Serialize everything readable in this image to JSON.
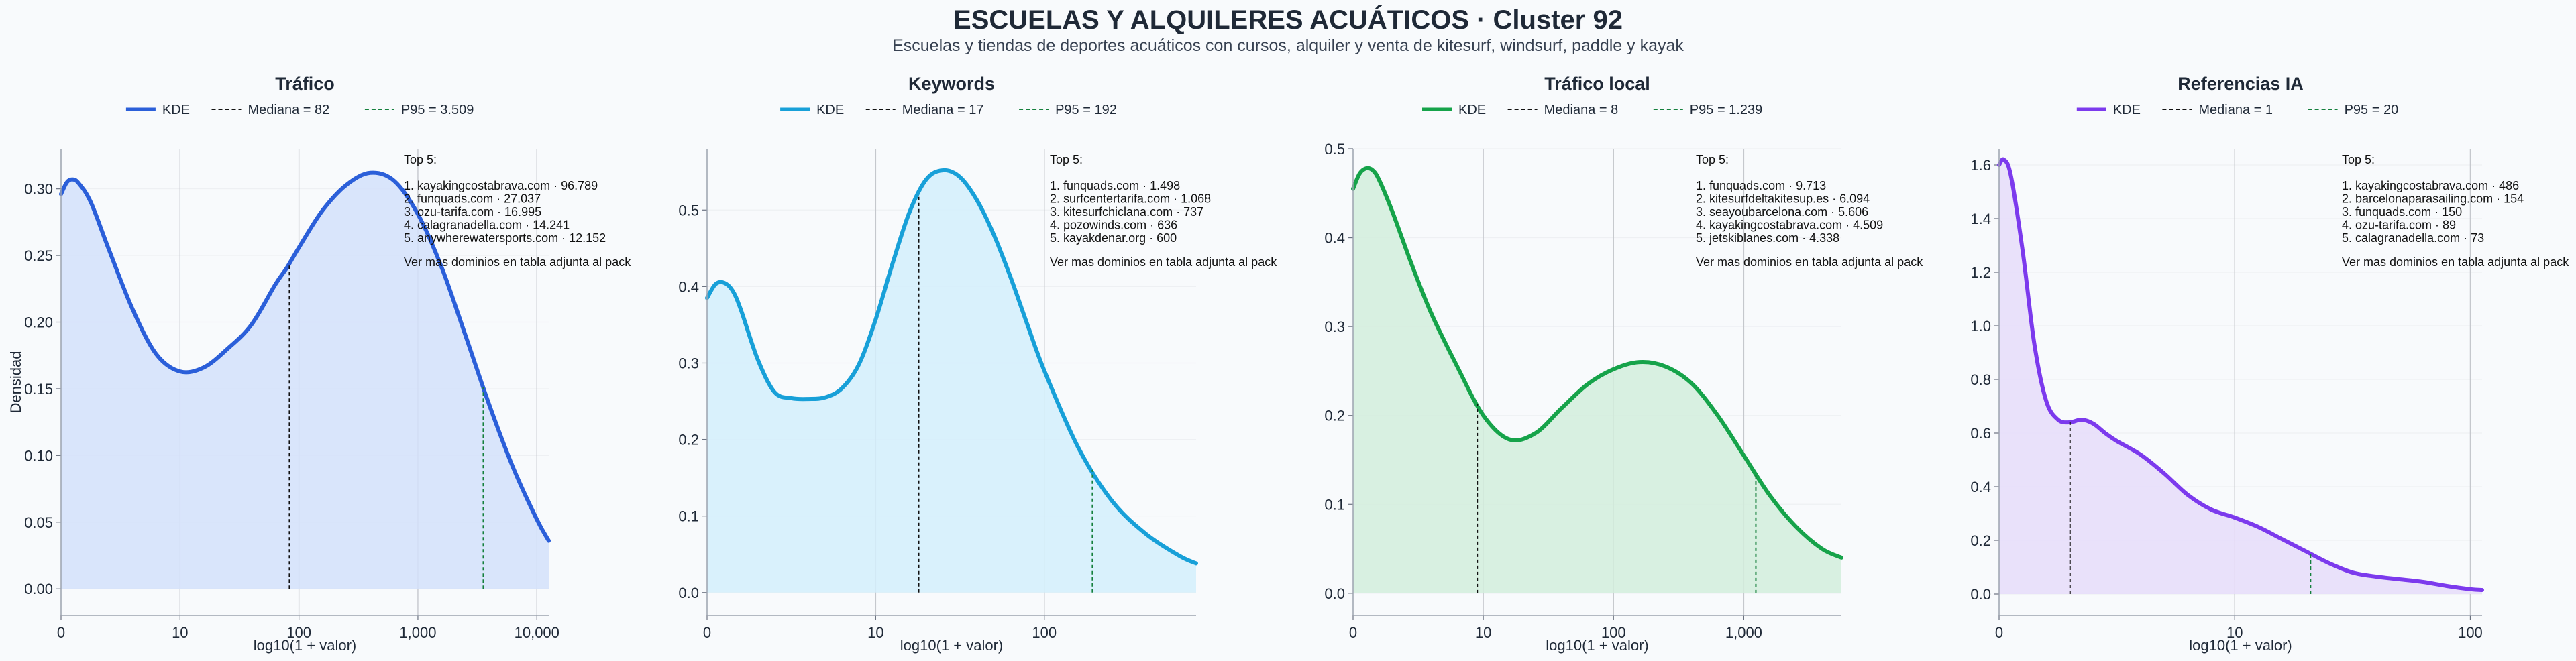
{
  "title": "ESCUELAS Y ALQUILERES ACUÁTICOS · Cluster 92",
  "subtitle": "Escuelas y tiendas de deportes acuáticos con cursos, alquiler y venta de kitesurf, windsurf, paddle y kayak",
  "shared": {
    "xlabel": "log10(1 + valor)",
    "ylabel": "Densidad",
    "kde_label": "KDE",
    "footer_note": "Ver mas dominios en tabla adjunta al pack",
    "top_header": "Top 5:"
  },
  "chart_data": [
    {
      "type": "area",
      "title": "Tráfico",
      "color": "#2b5fd9",
      "fill": "#d4e0fa",
      "x_max": 4.1,
      "ylim": [
        -0.02,
        0.33
      ],
      "x_ticks": [
        {
          "v": 0,
          "label": "0"
        },
        {
          "v": 1,
          "label": "10"
        },
        {
          "v": 2,
          "label": "100"
        },
        {
          "v": 3,
          "label": "1,000"
        },
        {
          "v": 4,
          "label": "10,000"
        }
      ],
      "y_ticks": [
        0,
        0.05,
        0.1,
        0.15,
        0.2,
        0.25,
        0.3
      ],
      "y_tick_labels": [
        "0.00",
        "0.05",
        "0.10",
        "0.15",
        "0.20",
        "0.25",
        "0.30"
      ],
      "kde_x": [
        0,
        0.05,
        0.1,
        0.15,
        0.25,
        0.4,
        0.6,
        0.8,
        1.0,
        1.2,
        1.4,
        1.6,
        1.8,
        1.9,
        2.0,
        2.2,
        2.4,
        2.6,
        2.8,
        3.0,
        3.2,
        3.4,
        3.6,
        3.8,
        4.0,
        4.1
      ],
      "kde_y": [
        0.296,
        0.305,
        0.307,
        0.304,
        0.29,
        0.255,
        0.21,
        0.176,
        0.163,
        0.166,
        0.18,
        0.198,
        0.228,
        0.241,
        0.256,
        0.284,
        0.303,
        0.312,
        0.306,
        0.281,
        0.241,
        0.19,
        0.138,
        0.091,
        0.052,
        0.036
      ],
      "median": {
        "label": "Mediana = 82",
        "x": 1.92
      },
      "p95": {
        "label": "P95 = 3.509",
        "x": 3.55
      },
      "top": [
        "1. kayakingcostabrava.com · 96.789",
        "2. funquads.com · 27.037",
        "3. ozu-tarifa.com · 16.995",
        "4. calagranadella.com · 14.241",
        "5. anywherewatersports.com · 12.152"
      ]
    },
    {
      "type": "area",
      "title": "Keywords",
      "color": "#18a0d8",
      "fill": "#d3eefb",
      "x_max": 2.9,
      "ylim": [
        -0.03,
        0.58
      ],
      "x_ticks": [
        {
          "v": 0,
          "label": "0"
        },
        {
          "v": 1,
          "label": "10"
        },
        {
          "v": 2,
          "label": "100"
        }
      ],
      "y_ticks": [
        0,
        0.1,
        0.2,
        0.3,
        0.4,
        0.5
      ],
      "y_tick_labels": [
        "0.0",
        "0.1",
        "0.2",
        "0.3",
        "0.4",
        "0.5"
      ],
      "kde_x": [
        0,
        0.05,
        0.1,
        0.15,
        0.2,
        0.3,
        0.4,
        0.5,
        0.6,
        0.7,
        0.8,
        0.9,
        1.0,
        1.1,
        1.2,
        1.3,
        1.4,
        1.5,
        1.6,
        1.7,
        1.8,
        1.9,
        2.0,
        2.2,
        2.4,
        2.6,
        2.8,
        2.9
      ],
      "kde_y": [
        0.385,
        0.403,
        0.405,
        0.395,
        0.37,
        0.305,
        0.262,
        0.254,
        0.253,
        0.255,
        0.267,
        0.298,
        0.357,
        0.43,
        0.497,
        0.54,
        0.552,
        0.543,
        0.513,
        0.468,
        0.412,
        0.35,
        0.29,
        0.19,
        0.12,
        0.077,
        0.048,
        0.038
      ],
      "median": {
        "label": "Mediana = 17",
        "x": 1.255
      },
      "p95": {
        "label": "P95 = 192",
        "x": 2.285
      },
      "top": [
        "1. funquads.com · 1.498",
        "2. surfcentertarifa.com · 1.068",
        "3. kitesurfchiclana.com · 737",
        "4. pozowinds.com · 636",
        "5. kayakdenar.org · 600"
      ]
    },
    {
      "type": "area",
      "title": "Tráfico local",
      "color": "#16a34a",
      "fill": "#d2eddc",
      "x_max": 3.75,
      "ylim": [
        -0.025,
        0.5
      ],
      "x_ticks": [
        {
          "v": 0,
          "label": "0"
        },
        {
          "v": 1,
          "label": "10"
        },
        {
          "v": 2,
          "label": "100"
        },
        {
          "v": 3,
          "label": "1,000"
        }
      ],
      "y_ticks": [
        0,
        0.1,
        0.2,
        0.3,
        0.4,
        0.5
      ],
      "y_tick_labels": [
        "0.0",
        "0.1",
        "0.2",
        "0.3",
        "0.4",
        "0.5"
      ],
      "kde_x": [
        0,
        0.05,
        0.1,
        0.15,
        0.2,
        0.3,
        0.45,
        0.6,
        0.8,
        1.0,
        1.2,
        1.4,
        1.6,
        1.8,
        2.0,
        2.2,
        2.4,
        2.6,
        2.8,
        3.0,
        3.2,
        3.4,
        3.6,
        3.75
      ],
      "kde_y": [
        0.455,
        0.472,
        0.478,
        0.476,
        0.465,
        0.43,
        0.37,
        0.315,
        0.255,
        0.2,
        0.173,
        0.18,
        0.208,
        0.235,
        0.252,
        0.26,
        0.255,
        0.236,
        0.2,
        0.155,
        0.11,
        0.075,
        0.05,
        0.04
      ],
      "median": {
        "label": "Mediana = 8",
        "x": 0.954
      },
      "p95": {
        "label": "P95 = 1.239",
        "x": 3.093
      },
      "top": [
        "1. funquads.com · 9.713",
        "2. kitesurfdeltakitesup.es · 6.094",
        "3. seayoubarcelona.com · 5.606",
        "4. kayakingcostabrava.com · 4.509",
        "5. jetskiblanes.com · 4.338"
      ]
    },
    {
      "type": "area",
      "title": "Referencias IA",
      "color": "#7c3aed",
      "fill": "#e6dcf9",
      "x_max": 2.05,
      "ylim": [
        -0.08,
        1.66
      ],
      "x_ticks": [
        {
          "v": 0,
          "label": "0"
        },
        {
          "v": 1,
          "label": "10"
        },
        {
          "v": 2,
          "label": "100"
        }
      ],
      "y_ticks": [
        0,
        0.2,
        0.4,
        0.6,
        0.8,
        1.0,
        1.2,
        1.4,
        1.6
      ],
      "y_tick_labels": [
        "0.0",
        "0.2",
        "0.4",
        "0.6",
        "0.8",
        "1.0",
        "1.2",
        "1.4",
        "1.6"
      ],
      "kde_x": [
        0,
        0.02,
        0.05,
        0.1,
        0.15,
        0.2,
        0.25,
        0.3,
        0.35,
        0.4,
        0.45,
        0.5,
        0.6,
        0.7,
        0.8,
        0.9,
        1.0,
        1.1,
        1.2,
        1.3,
        1.4,
        1.5,
        1.6,
        1.7,
        1.8,
        1.9,
        2.0,
        2.05
      ],
      "kde_y": [
        1.6,
        1.62,
        1.56,
        1.28,
        0.93,
        0.72,
        0.65,
        0.64,
        0.65,
        0.635,
        0.6,
        0.57,
        0.52,
        0.45,
        0.37,
        0.315,
        0.285,
        0.25,
        0.205,
        0.16,
        0.115,
        0.08,
        0.065,
        0.055,
        0.045,
        0.03,
        0.018,
        0.015
      ],
      "median": {
        "label": "Mediana = 1",
        "x": 0.301
      },
      "p95": {
        "label": "P95 = 20",
        "x": 1.322
      },
      "top": [
        "1. kayakingcostabrava.com · 486",
        "2. barcelonaparasailing.com · 154",
        "3. funquads.com · 150",
        "4. ozu-tarifa.com · 89",
        "5. calagranadella.com · 73"
      ]
    }
  ]
}
